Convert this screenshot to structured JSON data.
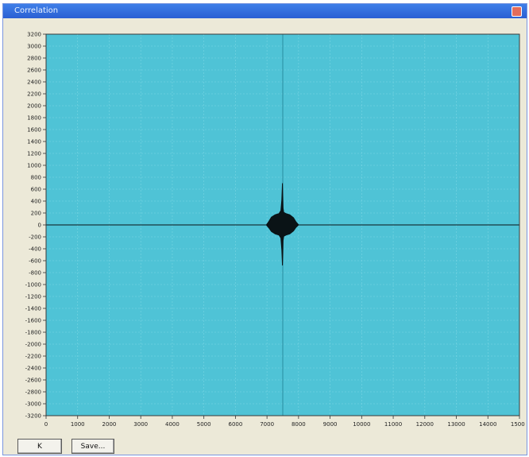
{
  "window": {
    "title": "Correlation"
  },
  "buttons": {
    "ok_label": "K",
    "save_label": "Save..."
  },
  "colors": {
    "plot_bg": "#4fc3d6",
    "grid": "#7ad6e3",
    "axis_line": "#2a8ca0",
    "signal": "#0a1316"
  },
  "chart_data": {
    "type": "line",
    "title": "",
    "xlabel": "",
    "ylabel": "",
    "xlim": [
      0,
      15000
    ],
    "ylim": [
      -3200,
      3200
    ],
    "grid": true,
    "x_ticks": [
      "0",
      "1000",
      "2000",
      "3000",
      "4000",
      "5000",
      "6000",
      "7000",
      "8000",
      "9000",
      "10000",
      "11000",
      "12000",
      "13000",
      "14000",
      "15000"
    ],
    "y_ticks": [
      "3200",
      "3000",
      "2800",
      "2600",
      "2400",
      "2200",
      "2000",
      "1800",
      "1600",
      "1400",
      "1200",
      "1000",
      "800",
      "600",
      "400",
      "200",
      "0",
      "-200",
      "-400",
      "-600",
      "-800",
      "-1000",
      "-1200",
      "-1400",
      "-1600",
      "-1800",
      "-2000",
      "-2200",
      "-2400",
      "-2600",
      "-2800",
      "-3000",
      "-3200"
    ],
    "x_tick_values": [
      0,
      1000,
      2000,
      3000,
      4000,
      5000,
      6000,
      7000,
      8000,
      9000,
      10000,
      11000,
      12000,
      13000,
      14000,
      15000
    ],
    "y_tick_values": [
      3200,
      3000,
      2800,
      2600,
      2400,
      2200,
      2000,
      1800,
      1600,
      1400,
      1200,
      1000,
      800,
      600,
      400,
      200,
      0,
      -200,
      -400,
      -600,
      -800,
      -1000,
      -1200,
      -1400,
      -1600,
      -1800,
      -2000,
      -2200,
      -2400,
      -2600,
      -2800,
      -3000,
      -3200
    ],
    "peak": {
      "x": 7500,
      "y_max": 700,
      "y_min": -700
    },
    "series": [
      {
        "points": [
          [
            0,
            0
          ],
          [
            6980,
            0
          ],
          [
            7060,
            60
          ],
          [
            7140,
            130
          ],
          [
            7260,
            170
          ],
          [
            7380,
            190
          ],
          [
            7440,
            240
          ],
          [
            7470,
            420
          ],
          [
            7490,
            700
          ],
          [
            7500,
            500
          ],
          [
            7510,
            280
          ],
          [
            7530,
            210
          ],
          [
            7600,
            190
          ],
          [
            7720,
            170
          ],
          [
            7840,
            120
          ],
          [
            7920,
            50
          ],
          [
            8000,
            0
          ],
          [
            15000,
            0
          ]
        ]
      },
      {
        "points": [
          [
            0,
            0
          ],
          [
            6980,
            0
          ],
          [
            7060,
            -50
          ],
          [
            7140,
            -110
          ],
          [
            7260,
            -150
          ],
          [
            7380,
            -170
          ],
          [
            7440,
            -220
          ],
          [
            7470,
            -420
          ],
          [
            7490,
            -680
          ],
          [
            7500,
            -520
          ],
          [
            7510,
            -260
          ],
          [
            7530,
            -190
          ],
          [
            7600,
            -170
          ],
          [
            7720,
            -150
          ],
          [
            7840,
            -100
          ],
          [
            7920,
            -40
          ],
          [
            8000,
            0
          ],
          [
            15000,
            0
          ]
        ]
      }
    ]
  }
}
